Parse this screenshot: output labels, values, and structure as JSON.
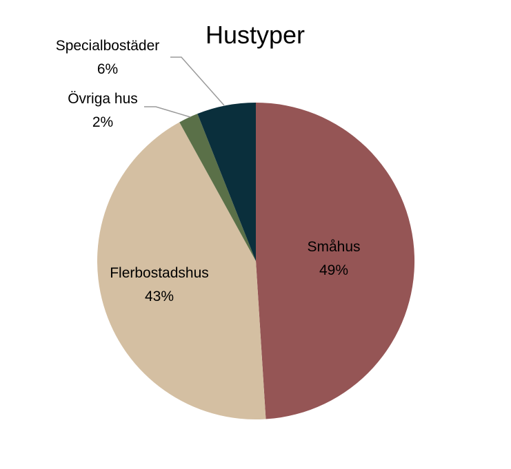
{
  "chart_data": {
    "type": "pie",
    "title": "Hustyper",
    "categories": [
      "Småhus",
      "Flerbostadshus",
      "Övriga hus",
      "Specialbostäder"
    ],
    "values": [
      49,
      43,
      2,
      6
    ],
    "value_labels": [
      "49%",
      "43%",
      "2%",
      "6%"
    ],
    "colors": [
      "#955555",
      "#d4bfa2",
      "#5a7048",
      "#0a2f3c"
    ],
    "label_placement": [
      "inside",
      "inside",
      "outside",
      "outside"
    ],
    "start_angle_deg": 0,
    "direction": "clockwise",
    "legend": "none"
  }
}
